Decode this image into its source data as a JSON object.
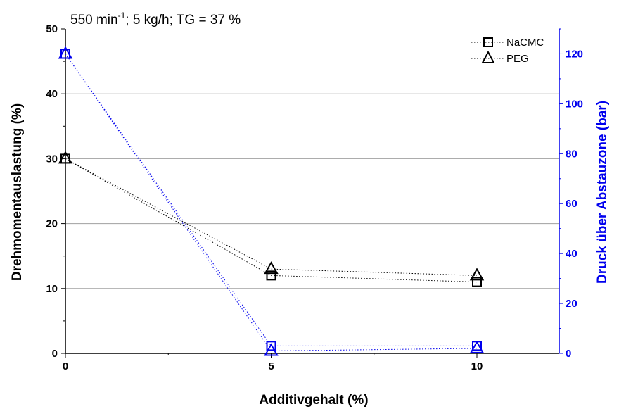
{
  "chart_data": {
    "type": "line",
    "title": "550 min⁻¹; 5 kg/h; TG = 37 %",
    "title_parts": {
      "speed": "550 min",
      "exp": "-1",
      "rest": "; 5 kg/h; TG = 37 %"
    },
    "xlabel": "Additivgehalt (%)",
    "ylabel_left": "Drehmomentauslastung (%)",
    "ylabel_right": "Druck über Abstauzone (bar)",
    "xlim": [
      0,
      12
    ],
    "ylim_left": [
      0,
      50
    ],
    "ylim_right": [
      0,
      130
    ],
    "x_ticks": [
      0,
      5,
      10
    ],
    "y_ticks_left": [
      0,
      10,
      20,
      30,
      40,
      50
    ],
    "y_ticks_right": [
      0,
      20,
      40,
      60,
      80,
      100,
      120
    ],
    "grid": "horizontal",
    "legend_position": "top-right",
    "colors": {
      "left_axis": "#000000",
      "right_axis": "#0000ee",
      "grid": "#a0a0a0"
    },
    "series": [
      {
        "name": "NaCMC",
        "marker": "square",
        "axis": "left",
        "color": "#000000",
        "x": [
          0,
          5,
          10
        ],
        "y": [
          30,
          12,
          11
        ]
      },
      {
        "name": "PEG",
        "marker": "triangle",
        "axis": "left",
        "color": "#000000",
        "x": [
          0,
          5,
          10
        ],
        "y": [
          30,
          13,
          12
        ]
      },
      {
        "name": "NaCMC",
        "marker": "square",
        "axis": "right",
        "color": "#0000ee",
        "x": [
          0,
          5,
          10
        ],
        "y": [
          120,
          3,
          3
        ]
      },
      {
        "name": "PEG",
        "marker": "triangle",
        "axis": "right",
        "color": "#0000ee",
        "x": [
          0,
          5,
          10
        ],
        "y": [
          120,
          1,
          2
        ]
      }
    ]
  }
}
